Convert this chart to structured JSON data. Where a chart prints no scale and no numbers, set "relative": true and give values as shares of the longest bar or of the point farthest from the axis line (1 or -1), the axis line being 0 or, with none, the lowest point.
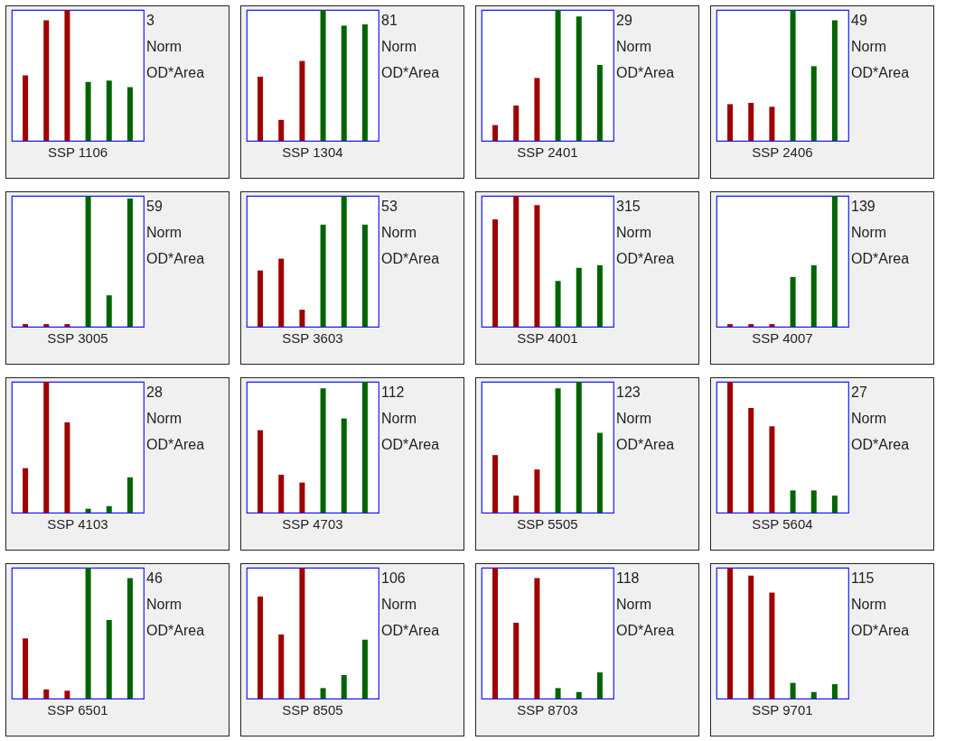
{
  "chart_data": [
    {
      "type": "bar",
      "title": "SSP 1106",
      "relative": true,
      "categories": [
        null,
        null,
        null,
        null,
        null,
        null
      ],
      "values": [
        0.5,
        0.92,
        1,
        0.45,
        0.46,
        0.41
      ],
      "colors": [
        "#a00000",
        "#a00000",
        "#a00000",
        "#006400",
        "#006400",
        "#006400"
      ],
      "annotations": [
        "3",
        "Norm",
        "OD*Area"
      ]
    },
    {
      "type": "bar",
      "title": "SSP 1304",
      "relative": true,
      "categories": [
        null,
        null,
        null,
        null,
        null,
        null
      ],
      "values": [
        0.49,
        0.16,
        0.61,
        1,
        0.88,
        0.89
      ],
      "colors": [
        "#a00000",
        "#a00000",
        "#a00000",
        "#006400",
        "#006400",
        "#006400"
      ],
      "annotations": [
        "81",
        "Norm",
        "OD*Area"
      ]
    },
    {
      "type": "bar",
      "title": "SSP 2401",
      "relative": true,
      "categories": [
        null,
        null,
        null,
        null,
        null,
        null
      ],
      "values": [
        0.12,
        0.27,
        0.48,
        1,
        0.95,
        0.58
      ],
      "colors": [
        "#a00000",
        "#a00000",
        "#a00000",
        "#006400",
        "#006400",
        "#006400"
      ],
      "annotations": [
        "29",
        "Norm",
        "OD*Area"
      ]
    },
    {
      "type": "bar",
      "title": "SSP 2406",
      "relative": true,
      "categories": [
        null,
        null,
        null,
        null,
        null,
        null
      ],
      "values": [
        0.28,
        0.29,
        0.26,
        1,
        0.57,
        0.92
      ],
      "colors": [
        "#a00000",
        "#a00000",
        "#a00000",
        "#006400",
        "#006400",
        "#006400"
      ],
      "annotations": [
        "49",
        "Norm",
        "OD*Area"
      ]
    },
    {
      "type": "bar",
      "title": "SSP 3005",
      "relative": true,
      "categories": [
        null,
        null,
        null,
        null,
        null,
        null
      ],
      "values": [
        0.02,
        0.02,
        0.02,
        1,
        0.24,
        0.98
      ],
      "colors": [
        "#a00000",
        "#a00000",
        "#a00000",
        "#006400",
        "#006400",
        "#006400"
      ],
      "annotations": [
        "59",
        "Norm",
        "OD*Area"
      ]
    },
    {
      "type": "bar",
      "title": "SSP 3603",
      "relative": true,
      "categories": [
        null,
        null,
        null,
        null,
        null,
        null
      ],
      "values": [
        0.43,
        0.52,
        0.13,
        0.78,
        1,
        0.78
      ],
      "colors": [
        "#a00000",
        "#a00000",
        "#a00000",
        "#006400",
        "#006400",
        "#006400"
      ],
      "annotations": [
        "53",
        "Norm",
        "OD*Area"
      ]
    },
    {
      "type": "bar",
      "title": "SSP 4001",
      "relative": true,
      "categories": [
        null,
        null,
        null,
        null,
        null,
        null
      ],
      "values": [
        0.82,
        1,
        0.93,
        0.35,
        0.45,
        0.47
      ],
      "colors": [
        "#a00000",
        "#a00000",
        "#a00000",
        "#006400",
        "#006400",
        "#006400"
      ],
      "annotations": [
        "315",
        "Norm",
        "OD*Area"
      ]
    },
    {
      "type": "bar",
      "title": "SSP 4007",
      "relative": true,
      "categories": [
        null,
        null,
        null,
        null,
        null,
        null
      ],
      "values": [
        0.02,
        0.02,
        0.02,
        0.38,
        0.47,
        1
      ],
      "colors": [
        "#a00000",
        "#a00000",
        "#a00000",
        "#006400",
        "#006400",
        "#006400"
      ],
      "annotations": [
        "139",
        "Norm",
        "OD*Area"
      ]
    },
    {
      "type": "bar",
      "title": "SSP 4103",
      "relative": true,
      "categories": [
        null,
        null,
        null,
        null,
        null,
        null
      ],
      "values": [
        0.34,
        1,
        0.69,
        0.03,
        0.05,
        0.27
      ],
      "colors": [
        "#a00000",
        "#a00000",
        "#a00000",
        "#006400",
        "#006400",
        "#006400"
      ],
      "annotations": [
        "28",
        "Norm",
        "OD*Area"
      ]
    },
    {
      "type": "bar",
      "title": "SSP 4703",
      "relative": true,
      "categories": [
        null,
        null,
        null,
        null,
        null,
        null
      ],
      "values": [
        0.63,
        0.29,
        0.23,
        0.95,
        0.72,
        1
      ],
      "colors": [
        "#a00000",
        "#a00000",
        "#a00000",
        "#006400",
        "#006400",
        "#006400"
      ],
      "annotations": [
        "112",
        "Norm",
        "OD*Area"
      ]
    },
    {
      "type": "bar",
      "title": "SSP 5505",
      "relative": true,
      "categories": [
        null,
        null,
        null,
        null,
        null,
        null
      ],
      "values": [
        0.44,
        0.13,
        0.33,
        0.95,
        1,
        0.61
      ],
      "colors": [
        "#a00000",
        "#a00000",
        "#a00000",
        "#006400",
        "#006400",
        "#006400"
      ],
      "annotations": [
        "123",
        "Norm",
        "OD*Area"
      ]
    },
    {
      "type": "bar",
      "title": "SSP 5604",
      "relative": true,
      "categories": [
        null,
        null,
        null,
        null,
        null,
        null
      ],
      "values": [
        1,
        0.8,
        0.66,
        0.17,
        0.17,
        0.13
      ],
      "colors": [
        "#a00000",
        "#a00000",
        "#a00000",
        "#006400",
        "#006400",
        "#006400"
      ],
      "annotations": [
        "27",
        "Norm",
        "OD*Area"
      ]
    },
    {
      "type": "bar",
      "title": "SSP 6501",
      "relative": true,
      "categories": [
        null,
        null,
        null,
        null,
        null,
        null
      ],
      "values": [
        0.46,
        0.07,
        0.06,
        1,
        0.6,
        0.92
      ],
      "colors": [
        "#a00000",
        "#a00000",
        "#a00000",
        "#006400",
        "#006400",
        "#006400"
      ],
      "annotations": [
        "46",
        "Norm",
        "OD*Area"
      ]
    },
    {
      "type": "bar",
      "title": "SSP 8505",
      "relative": true,
      "categories": [
        null,
        null,
        null,
        null,
        null,
        null
      ],
      "values": [
        0.78,
        0.49,
        1,
        0.08,
        0.18,
        0.45
      ],
      "colors": [
        "#a00000",
        "#a00000",
        "#a00000",
        "#006400",
        "#006400",
        "#006400"
      ],
      "annotations": [
        "106",
        "Norm",
        "OD*Area"
      ]
    },
    {
      "type": "bar",
      "title": "SSP 8703",
      "relative": true,
      "categories": [
        null,
        null,
        null,
        null,
        null,
        null
      ],
      "values": [
        1,
        0.58,
        0.92,
        0.08,
        0.05,
        0.2
      ],
      "colors": [
        "#a00000",
        "#a00000",
        "#a00000",
        "#006400",
        "#006400",
        "#006400"
      ],
      "annotations": [
        "118",
        "Norm",
        "OD*Area"
      ]
    },
    {
      "type": "bar",
      "title": "SSP 9701",
      "relative": true,
      "categories": [
        null,
        null,
        null,
        null,
        null,
        null
      ],
      "values": [
        1,
        0.94,
        0.81,
        0.12,
        0.05,
        0.11
      ],
      "colors": [
        "#a00000",
        "#a00000",
        "#a00000",
        "#006400",
        "#006400",
        "#006400"
      ],
      "annotations": [
        "115",
        "Norm",
        "OD*Area"
      ]
    }
  ]
}
